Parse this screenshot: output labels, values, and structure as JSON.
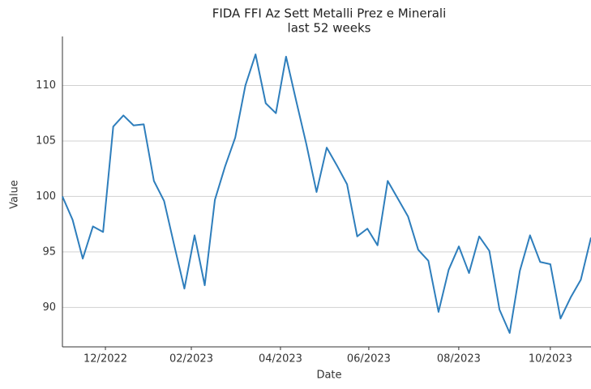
{
  "chart_data": {
    "type": "line",
    "title": "FIDA FFI Az Sett Metalli Prez e Minerali",
    "subtitle": "last 52 weeks",
    "x_label": "Date",
    "y_label": "Value",
    "x": [
      1,
      2,
      3,
      4,
      5,
      6,
      7,
      8,
      9,
      10,
      11,
      12,
      13,
      14,
      15,
      16,
      17,
      18,
      19,
      20,
      21,
      22,
      23,
      24,
      25,
      26,
      27,
      28,
      29,
      30,
      31,
      32,
      33,
      34,
      35,
      36,
      37,
      38,
      39,
      40,
      41,
      42,
      43,
      44,
      45,
      46,
      47,
      48,
      49,
      50,
      51,
      52,
      53
    ],
    "series": [
      {
        "name": "Value",
        "color": "#2e7ebc",
        "values": [
          100.0,
          97.9,
          94.4,
          97.3,
          96.8,
          106.3,
          107.3,
          106.4,
          106.5,
          101.4,
          99.6,
          95.6,
          91.7,
          96.5,
          92.0,
          99.7,
          102.7,
          105.3,
          110.0,
          112.8,
          108.4,
          107.5,
          112.6,
          108.6,
          104.7,
          100.4,
          104.4,
          102.8,
          101.1,
          96.4,
          97.1,
          95.6,
          101.4,
          99.8,
          98.2,
          95.2,
          94.2,
          89.6,
          93.4,
          95.5,
          93.1,
          96.4,
          95.1,
          89.8,
          87.7,
          93.3,
          96.5,
          94.1,
          93.9,
          89.0,
          90.9,
          92.5,
          96.3
        ]
      }
    ],
    "xlim": [
      1,
      53
    ],
    "xticks": [
      {
        "value": 5.23,
        "label": "12/2022"
      },
      {
        "value": 13.68,
        "label": "02/2023"
      },
      {
        "value": 22.45,
        "label": "04/2023"
      },
      {
        "value": 31.14,
        "label": "06/2023"
      },
      {
        "value": 39.99,
        "label": "08/2023"
      },
      {
        "value": 49.0,
        "label": "10/2023"
      }
    ],
    "ylim": [
      86.45,
      114.05
    ],
    "yticks": [
      90,
      95,
      100,
      105,
      110
    ],
    "grid": true
  }
}
